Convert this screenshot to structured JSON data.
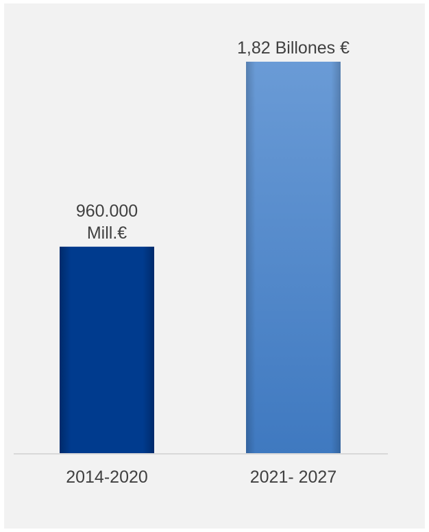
{
  "chart_data": {
    "type": "bar",
    "categories": [
      "2014-2020",
      "2021- 2027"
    ],
    "values": [
      960000,
      1820000
    ],
    "value_unit": "Mill.€",
    "data_labels": [
      [
        "960.000",
        "Mill.€"
      ],
      [
        "1,82 Billones €"
      ]
    ],
    "ylim": [
      0,
      1820000
    ],
    "grid": false,
    "legend": "none",
    "title": "",
    "xlabel": "",
    "ylabel": "",
    "colors": {
      "bar_1": "#003b8e",
      "bar_2_top": "#6a9bd6",
      "bar_2_bottom": "#3f79c0",
      "panel_background": "#f2f2f2",
      "baseline": "#d0d0d0",
      "text": "#404040"
    }
  }
}
